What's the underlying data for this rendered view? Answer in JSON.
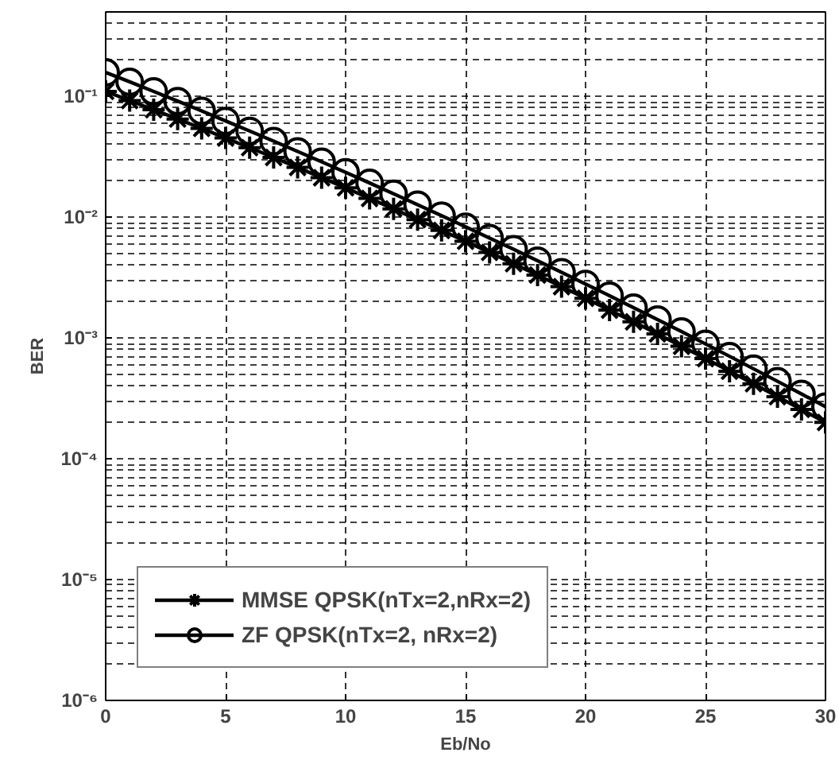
{
  "chart_data": {
    "type": "line",
    "xlabel": "Eb/No",
    "ylabel": "BER",
    "log": "y",
    "grid": true,
    "legend": "bottom left",
    "line_style": "solid",
    "x": [
      0,
      1,
      2,
      3,
      4,
      5,
      6,
      7,
      8,
      9,
      10,
      11,
      12,
      13,
      14,
      15,
      16,
      17,
      18,
      19,
      20,
      21,
      22,
      23,
      24,
      25,
      26,
      27,
      28,
      29,
      30
    ],
    "xlim": [
      0,
      30
    ],
    "xticks": [
      0,
      5,
      10,
      15,
      20,
      25,
      30
    ],
    "ylim": [
      1e-06,
      0.5
    ],
    "yticks": [
      {
        "value": 1e-06,
        "label": "10⁻⁶"
      },
      {
        "value": 1e-05,
        "label": "10⁻⁵"
      },
      {
        "value": 0.0001,
        "label": "10⁻⁴"
      },
      {
        "value": 0.001,
        "label": "10⁻³"
      },
      {
        "value": 0.01,
        "label": "10⁻²"
      },
      {
        "value": 0.1,
        "label": "10⁻¹"
      }
    ],
    "series": [
      {
        "name": "MMSE QPSK(nTx=2,nRx=2)",
        "color": "#000000",
        "marker": "cross",
        "values": [
          0.11,
          0.0923,
          0.0776,
          0.065,
          0.0543,
          0.0452,
          0.0376,
          0.0312,
          0.0258,
          0.0212,
          0.0175,
          0.0143,
          0.0117,
          0.00956,
          0.00777,
          0.00631,
          0.00511,
          0.00412,
          0.00332,
          0.00266,
          0.00213,
          0.0017,
          0.00136,
          0.00108,
          0.000853,
          0.000675,
          0.000531,
          0.000418,
          0.000327,
          0.000256,
          0.0002
        ]
      },
      {
        "name": "ZF QPSK(nTx=2, nRx=2)",
        "color": "#000000",
        "marker": "circle",
        "values": [
          0.158,
          0.132,
          0.11,
          0.0914,
          0.0757,
          0.0626,
          0.0517,
          0.0426,
          0.035,
          0.0287,
          0.0235,
          0.0192,
          0.0156,
          0.0127,
          0.0103,
          0.00832,
          0.00672,
          0.00542,
          0.00436,
          0.0035,
          0.0028,
          0.00224,
          0.00178,
          0.00142,
          0.00113,
          0.000893,
          0.000706,
          0.000556,
          0.000438,
          0.000344,
          0.00027
        ]
      }
    ]
  }
}
